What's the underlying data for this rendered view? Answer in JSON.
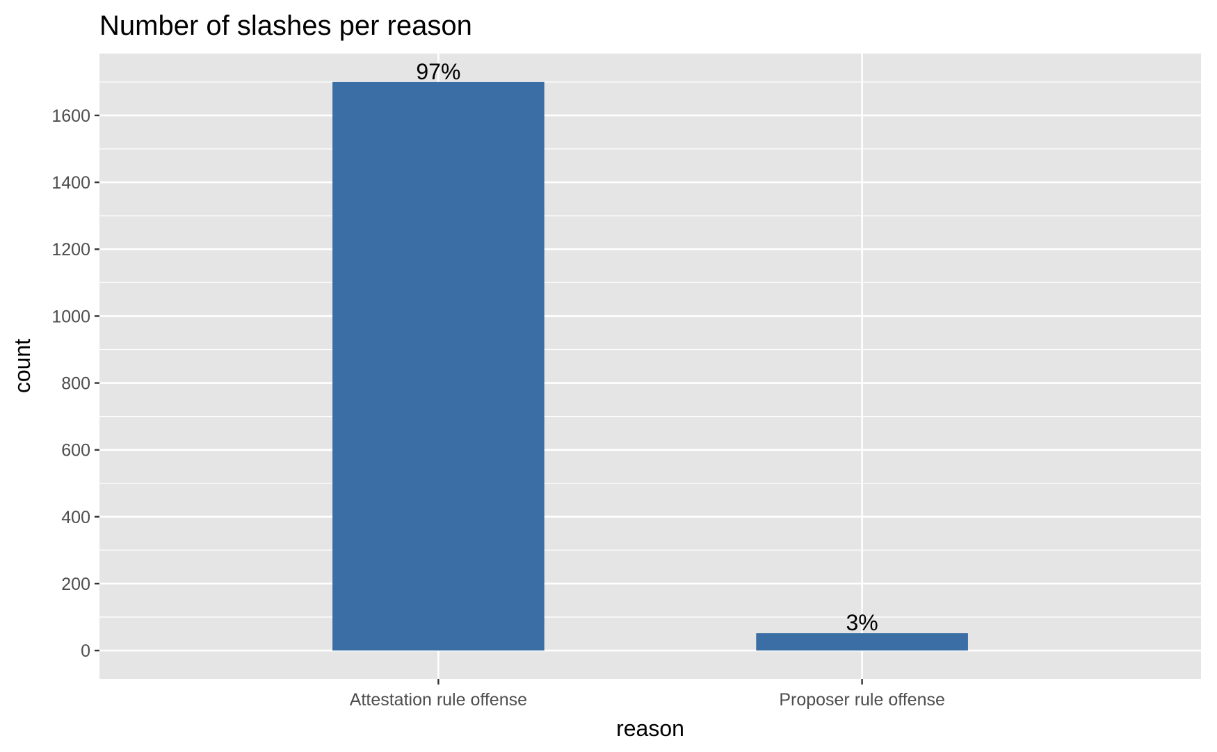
{
  "chart_data": {
    "type": "bar",
    "title": "Number of slashes per reason",
    "xlabel": "reason",
    "ylabel": "count",
    "categories": [
      "Attestation rule offense",
      "Proposer rule offense"
    ],
    "values": [
      1700,
      52
    ],
    "data_labels": [
      "97%",
      "3%"
    ],
    "y_ticks": [
      0,
      200,
      400,
      600,
      800,
      1000,
      1200,
      1400,
      1600
    ],
    "ylim": [
      -85,
      1785
    ],
    "grid": true,
    "legend": "none",
    "colors": {
      "bar": "#3A6EA5",
      "panel": "#E5E5E5",
      "grid": "#FFFFFF",
      "tick_text": "#4D4D4D"
    }
  }
}
